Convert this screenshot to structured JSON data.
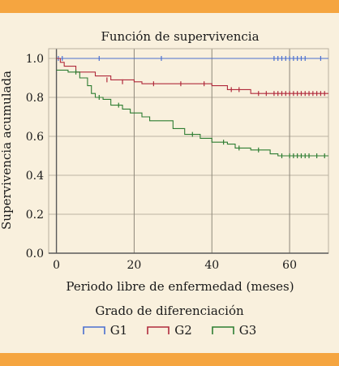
{
  "chart_data": {
    "type": "line",
    "title": "Función de supervivencia",
    "xlabel": "Periodo libre de enfermedad (meses)",
    "ylabel": "Supervivencia acumulada",
    "xlim": [
      -2,
      70
    ],
    "ylim": [
      0,
      1.05
    ],
    "xticks": [
      "0",
      "20",
      "40",
      "60"
    ],
    "yticks": [
      "0.0",
      "0.2",
      "0.4",
      "0.6",
      "0.8",
      "1.0"
    ],
    "legend_title": "Grado de diferenciación",
    "grid": true,
    "series": [
      {
        "name": "G1",
        "color": "#4a6fd0",
        "steps": [
          [
            0,
            1.0
          ],
          [
            70,
            1.0
          ]
        ],
        "censored": [
          [
            0.5,
            1.0
          ],
          [
            1.5,
            1.0
          ],
          [
            11,
            1.0
          ],
          [
            27,
            1.0
          ],
          [
            56,
            1.0
          ],
          [
            57,
            1.0
          ],
          [
            58,
            1.0
          ],
          [
            59,
            1.0
          ],
          [
            60,
            1.0
          ],
          [
            61,
            1.0
          ],
          [
            62,
            1.0
          ],
          [
            63,
            1.0
          ],
          [
            64,
            1.0
          ],
          [
            68,
            1.0
          ]
        ]
      },
      {
        "name": "G2",
        "color": "#b02a3c",
        "steps": [
          [
            0,
            1.0
          ],
          [
            1,
            0.98
          ],
          [
            2,
            0.96
          ],
          [
            5,
            0.93
          ],
          [
            10,
            0.91
          ],
          [
            14,
            0.89
          ],
          [
            20,
            0.88
          ],
          [
            22,
            0.87
          ],
          [
            26,
            0.87
          ],
          [
            40,
            0.86
          ],
          [
            44,
            0.84
          ],
          [
            50,
            0.82
          ],
          [
            70,
            0.82
          ]
        ],
        "censored": [
          [
            13,
            0.89
          ],
          [
            17,
            0.88
          ],
          [
            25,
            0.87
          ],
          [
            32,
            0.87
          ],
          [
            38,
            0.87
          ],
          [
            45,
            0.84
          ],
          [
            47,
            0.84
          ],
          [
            52,
            0.82
          ],
          [
            54,
            0.82
          ],
          [
            56,
            0.82
          ],
          [
            57,
            0.82
          ],
          [
            58,
            0.82
          ],
          [
            59,
            0.82
          ],
          [
            60,
            0.82
          ],
          [
            61,
            0.82
          ],
          [
            62,
            0.82
          ],
          [
            63,
            0.82
          ],
          [
            64,
            0.82
          ],
          [
            65,
            0.82
          ],
          [
            66,
            0.82
          ],
          [
            67,
            0.82
          ],
          [
            68,
            0.82
          ],
          [
            69,
            0.82
          ]
        ]
      },
      {
        "name": "G3",
        "color": "#2e7d32",
        "steps": [
          [
            0,
            0.94
          ],
          [
            3,
            0.93
          ],
          [
            6,
            0.9
          ],
          [
            8,
            0.86
          ],
          [
            9,
            0.82
          ],
          [
            10,
            0.8
          ],
          [
            12,
            0.79
          ],
          [
            14,
            0.76
          ],
          [
            17,
            0.74
          ],
          [
            19,
            0.72
          ],
          [
            22,
            0.7
          ],
          [
            24,
            0.68
          ],
          [
            30,
            0.64
          ],
          [
            33,
            0.61
          ],
          [
            37,
            0.59
          ],
          [
            40,
            0.57
          ],
          [
            44,
            0.56
          ],
          [
            46,
            0.54
          ],
          [
            50,
            0.53
          ],
          [
            55,
            0.51
          ],
          [
            57,
            0.5
          ],
          [
            70,
            0.5
          ]
        ],
        "censored": [
          [
            5,
            0.93
          ],
          [
            11,
            0.8
          ],
          [
            16,
            0.76
          ],
          [
            35,
            0.61
          ],
          [
            43,
            0.57
          ],
          [
            47,
            0.54
          ],
          [
            52,
            0.53
          ],
          [
            58,
            0.5
          ],
          [
            60,
            0.5
          ],
          [
            61,
            0.5
          ],
          [
            62,
            0.5
          ],
          [
            63,
            0.5
          ],
          [
            64,
            0.5
          ],
          [
            65,
            0.5
          ],
          [
            67,
            0.5
          ],
          [
            69,
            0.5
          ]
        ]
      }
    ]
  }
}
